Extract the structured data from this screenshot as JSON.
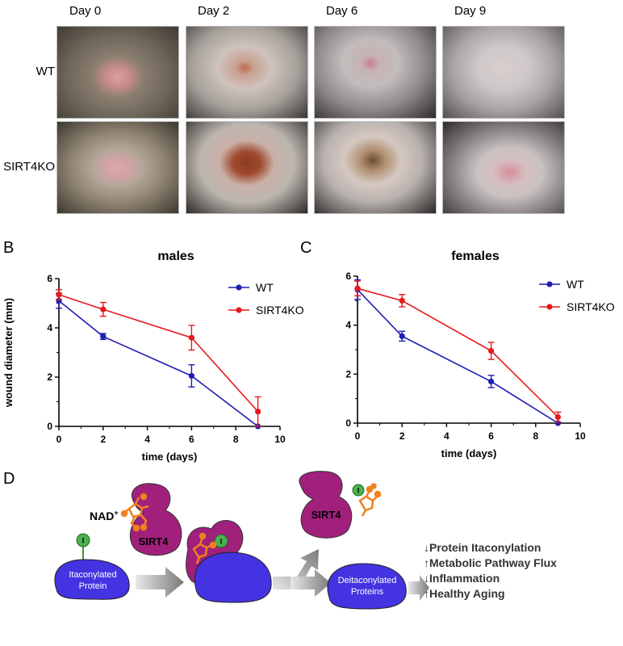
{
  "panel_a": {
    "days": [
      "Day 0",
      "Day 2",
      "Day 6",
      "Day 9"
    ],
    "rows": [
      "WT",
      "SIRT4KO"
    ]
  },
  "panel_b": {
    "letter": "B"
  },
  "panel_c": {
    "letter": "C"
  },
  "chart_data": [
    {
      "type": "line",
      "title": "males",
      "xlabel": "time (days)",
      "ylabel": "wound diameter (mm)",
      "xlim": [
        0,
        10
      ],
      "ylim": [
        0,
        6
      ],
      "xticks": [
        "0",
        "2",
        "4",
        "6",
        "8",
        "10"
      ],
      "yticks": [
        "0",
        "2",
        "4",
        "6"
      ],
      "x": [
        0,
        2,
        6,
        9
      ],
      "legend": "top-right",
      "series": [
        {
          "name": "WT",
          "color": "#1f1fb4",
          "values": [
            5.1,
            3.65,
            2.05,
            0.0
          ],
          "err": [
            0.3,
            0.12,
            0.45,
            0.0
          ]
        },
        {
          "name": "SIRT4KO",
          "color": "#e8191c",
          "values": [
            5.35,
            4.75,
            3.6,
            0.6
          ],
          "err": [
            0.2,
            0.28,
            0.5,
            0.6
          ]
        }
      ]
    },
    {
      "type": "line",
      "title": "females",
      "xlabel": "time (days)",
      "ylabel": "",
      "xlim": [
        0,
        10
      ],
      "ylim": [
        0,
        6
      ],
      "xticks": [
        "0",
        "2",
        "4",
        "6",
        "8",
        "10"
      ],
      "yticks": [
        "0",
        "2",
        "4",
        "6"
      ],
      "x": [
        0,
        2,
        6,
        9
      ],
      "legend": "top-right",
      "series": [
        {
          "name": "WT",
          "color": "#1f1fb4",
          "values": [
            5.45,
            3.55,
            1.7,
            0.0
          ],
          "err": [
            0.4,
            0.2,
            0.25,
            0.0
          ]
        },
        {
          "name": "SIRT4KO",
          "color": "#e8191c",
          "values": [
            5.5,
            5.0,
            2.95,
            0.25
          ],
          "err": [
            0.3,
            0.25,
            0.35,
            0.2
          ]
        }
      ]
    }
  ],
  "panel_d": {
    "letter": "D",
    "nad_label": "NAD",
    "nad_sup": "+",
    "sirt4_label": "SIRT4",
    "itaconyl_badge": "I",
    "itaconylated_line1": "Itaconylated",
    "itaconylated_line2": "Protein",
    "deitaconylated_line1": "Deitaconylated",
    "deitaconylated_line2": "Proteins",
    "effects": [
      {
        "arrow": "↓",
        "text": "Protein Itaconylation"
      },
      {
        "arrow": "↑",
        "text": "Metabolic Pathway Flux"
      },
      {
        "arrow": "↓",
        "text": "Inflammation"
      },
      {
        "arrow": "↑",
        "text": "Healthy Aging"
      }
    ],
    "colors": {
      "protein": "#4433e0",
      "sirt4": "#a0207c",
      "badge": "#4caf50",
      "itaconate": "#f08020"
    }
  }
}
